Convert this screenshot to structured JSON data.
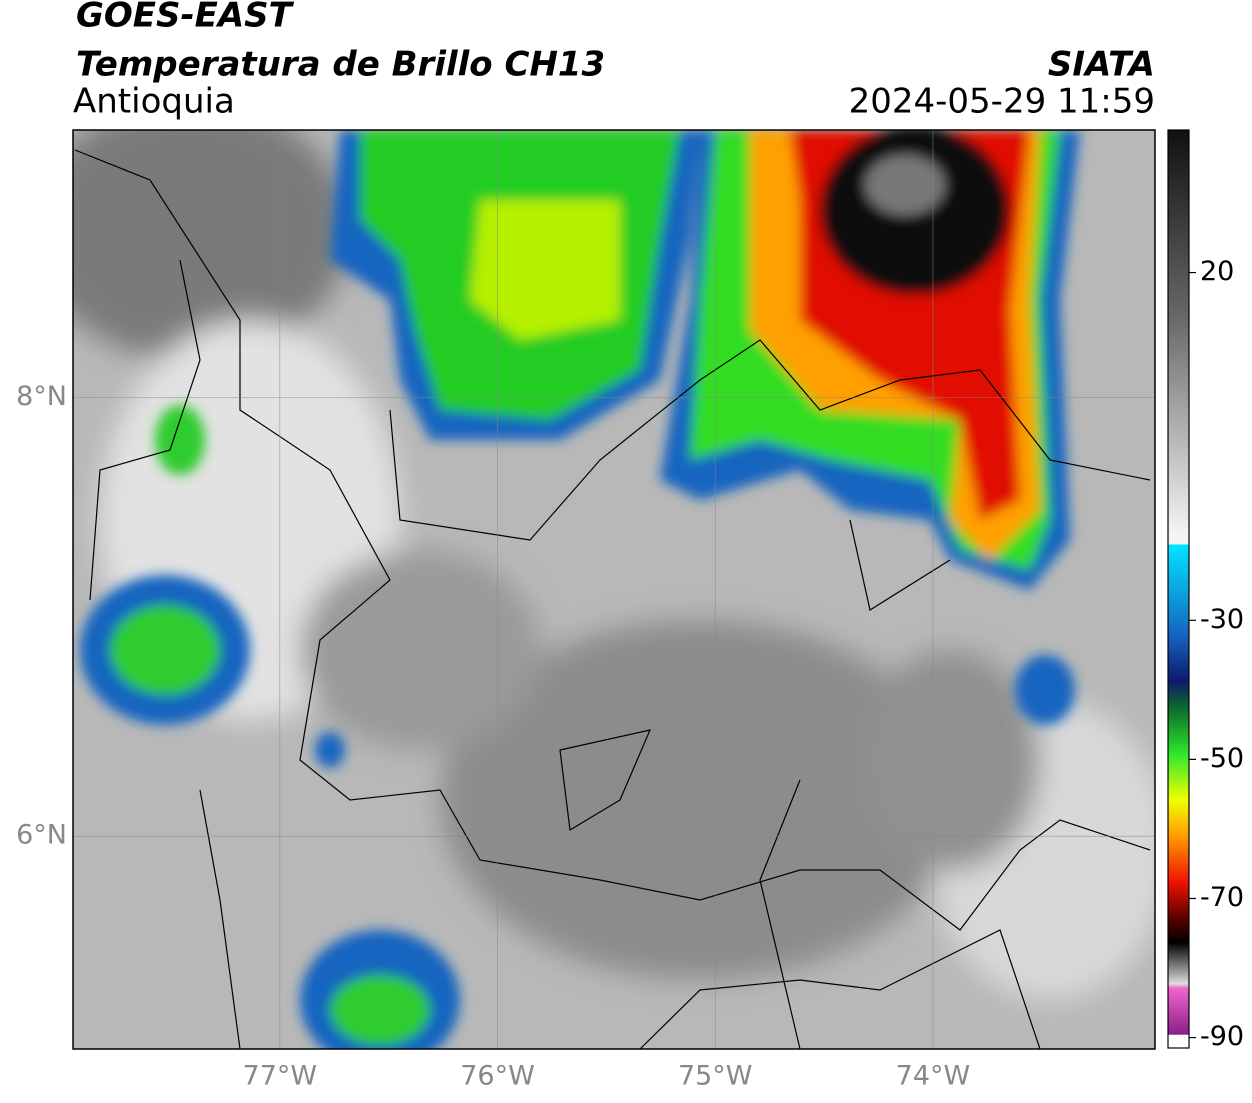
{
  "header": {
    "satellite": "GOES-EAST",
    "product": "Temperatura de Brillo CH13",
    "region": "Antioquia",
    "source": "SIATA",
    "datetime": "2024-05-29 11:59"
  },
  "map": {
    "lonlim": [
      -77.95,
      -72.98
    ],
    "latlim": [
      5.03,
      9.22
    ],
    "lon_ticks": [
      {
        "value": -77,
        "label": "77°W"
      },
      {
        "value": -76,
        "label": "76°W"
      },
      {
        "value": -75,
        "label": "75°W"
      },
      {
        "value": -74,
        "label": "74°W"
      }
    ],
    "lat_ticks": [
      {
        "value": 8,
        "label": "8°N"
      },
      {
        "value": 6,
        "label": "6°N"
      }
    ]
  },
  "colorbar": {
    "lim": [
      -91.5,
      40.5
    ],
    "ticks": [
      20,
      -30,
      -50,
      -70,
      -90
    ]
  }
}
